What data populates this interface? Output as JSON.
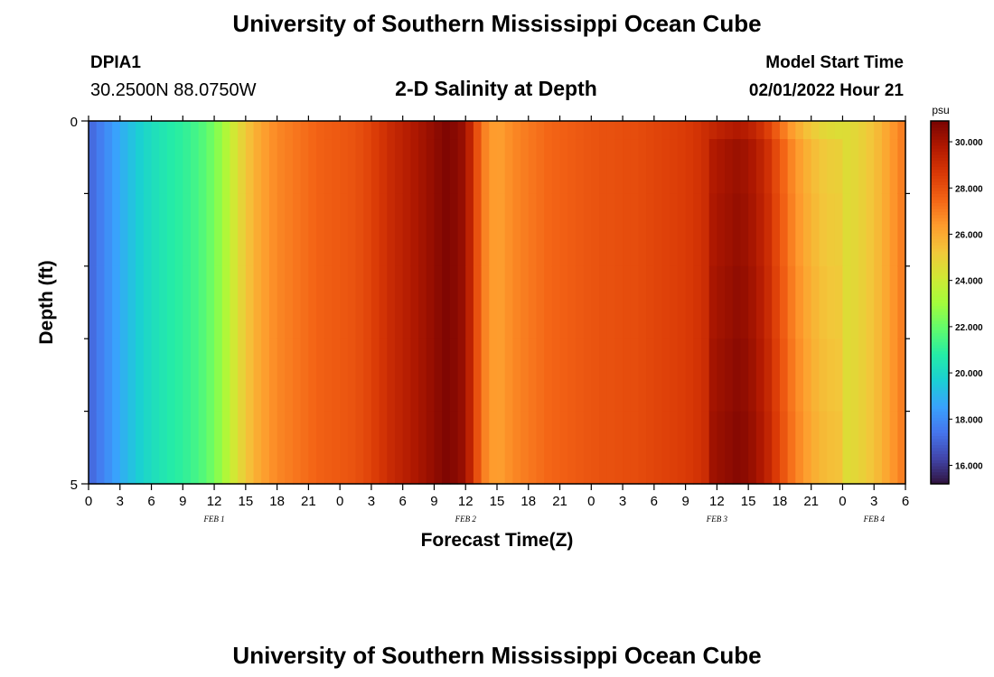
{
  "header": {
    "title": "University of Southern Mississippi Ocean Cube",
    "station_id": "DPIA1",
    "station_coords": "30.2500N  88.0750W",
    "subtitle": "2-D Salinity at Depth",
    "model_start_label": "Model Start Time",
    "model_start_value": "02/01/2022 Hour 21"
  },
  "footer": {
    "title_repeat": "University of Southern Mississippi Ocean Cube"
  },
  "chart_data": {
    "type": "heatmap",
    "title": "2-D Salinity at Depth",
    "xlabel": "Forecast Time(Z)",
    "ylabel": "Depth (ft)",
    "x_unit": "hours from Feb 1 00Z",
    "x_tick_labels": [
      "0",
      "3",
      "6",
      "9",
      "12",
      "15",
      "18",
      "21",
      "0",
      "3",
      "6",
      "9",
      "12",
      "15",
      "18",
      "21",
      "0",
      "3",
      "6",
      "9",
      "12",
      "15",
      "18",
      "21",
      "0",
      "3",
      "6"
    ],
    "date_labels": [
      {
        "text": "FEB 1",
        "at_hour": 12
      },
      {
        "text": "FEB 2",
        "at_hour": 36
      },
      {
        "text": "FEB 3",
        "at_hour": 60
      },
      {
        "text": "FEB 4",
        "at_hour": 75
      }
    ],
    "y_tick_labels": [
      "0",
      "5"
    ],
    "ylim": [
      0,
      5
    ],
    "xlim": [
      0,
      78
    ],
    "depth_levels_ft": [
      0,
      0.5,
      1.5,
      2.5,
      3.5,
      4.5
    ],
    "colorbar": {
      "unit": "psu",
      "min": 15.2,
      "max": 30.9,
      "tick_labels": [
        "16.000",
        "18.000",
        "20.000",
        "22.000",
        "24.000",
        "26.000",
        "28.000",
        "30.000"
      ],
      "tick_values": [
        16,
        18,
        20,
        22,
        24,
        26,
        28,
        30
      ],
      "colors": [
        "#30123b",
        "#4145ab",
        "#4675ed",
        "#39a2fc",
        "#1bcfd4",
        "#24eca6",
        "#61fc6c",
        "#a4fc3b",
        "#d1e834",
        "#f3c63a",
        "#fe9b2d",
        "#f36315",
        "#d93806",
        "#b11901",
        "#7a0402"
      ]
    },
    "time_profile": {
      "hours": [
        0,
        1,
        2,
        3,
        4,
        5,
        6,
        7,
        8,
        9,
        10,
        11,
        12,
        13,
        14,
        15,
        16,
        17,
        18,
        19,
        20,
        21,
        22,
        23,
        24,
        25,
        26,
        27,
        28,
        29,
        30,
        31,
        32,
        33,
        34,
        35,
        36,
        37,
        38,
        39,
        40,
        41,
        42,
        43,
        44,
        45,
        46,
        47,
        48,
        49,
        50,
        51,
        52,
        53,
        54,
        55,
        56,
        57,
        58,
        59,
        60,
        61,
        62,
        63,
        64,
        65,
        66,
        67,
        68,
        69,
        70,
        71,
        72,
        73,
        74,
        75,
        76,
        77,
        78
      ],
      "salinity": [
        17.0,
        17.6,
        18.2,
        18.8,
        19.3,
        19.8,
        20.2,
        20.5,
        20.8,
        21.0,
        21.3,
        21.7,
        22.3,
        23.2,
        24.3,
        25.2,
        25.9,
        26.4,
        26.8,
        27.0,
        27.2,
        27.4,
        27.6,
        27.7,
        27.8,
        27.9,
        28.1,
        28.4,
        28.8,
        29.2,
        29.5,
        29.8,
        30.1,
        30.4,
        30.8,
        30.6,
        30.2,
        28.2,
        26.7,
        26.2,
        26.6,
        26.9,
        27.1,
        27.3,
        27.5,
        27.6,
        27.7,
        27.8,
        27.9,
        28.0,
        28.0,
        28.1,
        28.1,
        28.2,
        28.3,
        28.4,
        28.5,
        28.6,
        28.8,
        29.1,
        29.4,
        29.6,
        29.8,
        29.6,
        29.1,
        28.4,
        27.4,
        26.5,
        25.8,
        25.2,
        24.8,
        24.6,
        24.5,
        24.7,
        25.0,
        25.4,
        26.0,
        26.6,
        27.2
      ]
    },
    "deep_anomaly": {
      "hours_range": [
        59,
        72
      ],
      "depth_start_ft": 0.5,
      "extra_salinity_deep": 0.9
    }
  }
}
